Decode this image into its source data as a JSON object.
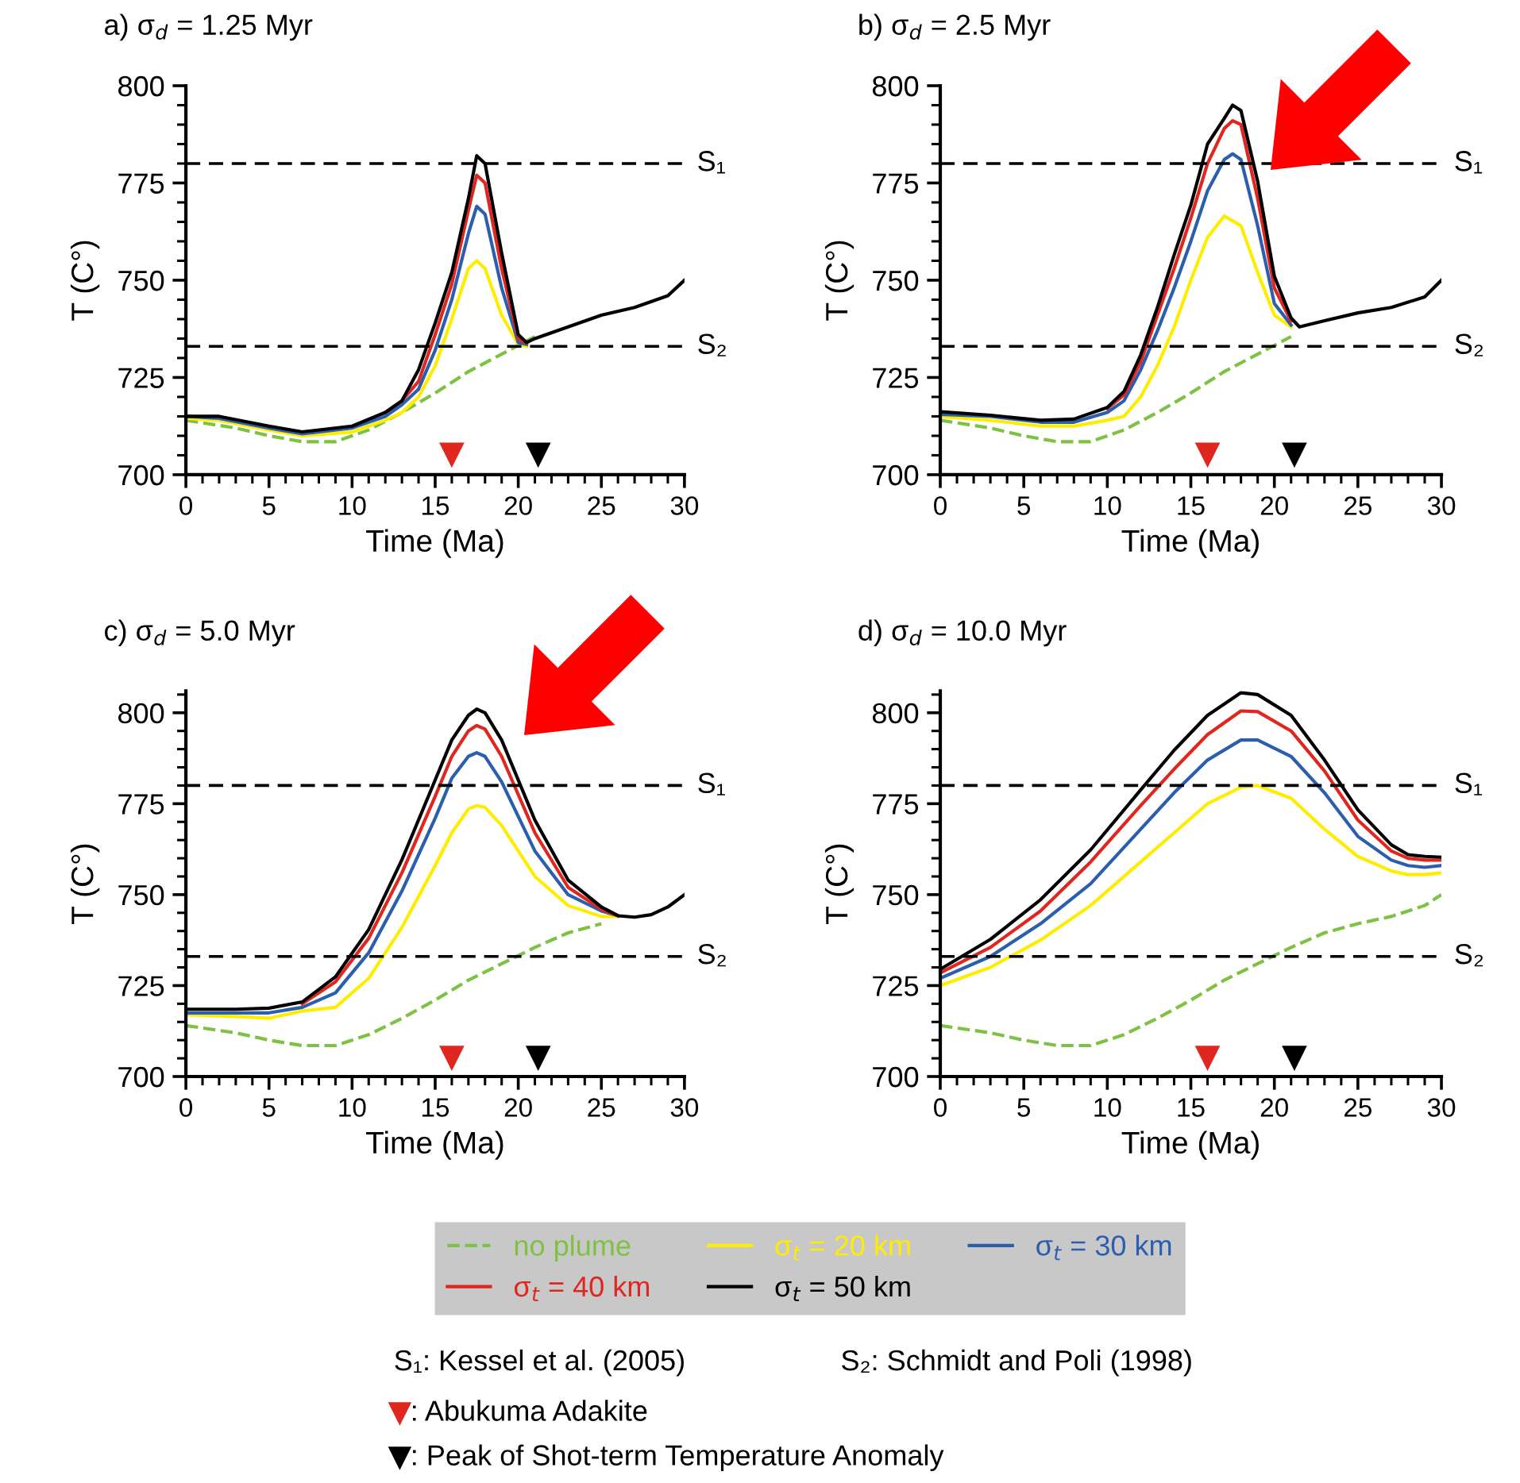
{
  "chart_data": [
    {
      "type": "line",
      "title": "a) σ$_{d}$ = 1.25 Myr",
      "xlabel": "Time (Ma)",
      "ylabel": "T (C°)",
      "xlim": [
        0,
        30
      ],
      "ylim": [
        700,
        800
      ],
      "xticks": [
        0,
        5,
        10,
        15,
        20,
        25,
        30
      ],
      "yticks": [
        700,
        725,
        750,
        775,
        800
      ],
      "ref_lines": [
        {
          "axis": "y",
          "value": 780,
          "label": "S₁",
          "color": "#000000",
          "line_style": "dashed"
        },
        {
          "axis": "y",
          "value": 733,
          "label": "S₂",
          "color": "#000000",
          "line_style": "dashed"
        }
      ],
      "series": [
        {
          "color": "#7dc242",
          "line_style": "dashed",
          "x": [
            0,
            3,
            5,
            7,
            9,
            11,
            13,
            15,
            17,
            19,
            21
          ],
          "values": [
            714,
            712,
            710,
            708.5,
            708.5,
            711.5,
            716,
            721,
            726.5,
            731,
            735.5
          ]
        },
        {
          "color": "#ffed00",
          "x": [
            0,
            2,
            5,
            7,
            10,
            12,
            13,
            14,
            15,
            16,
            17,
            17.5,
            18,
            19,
            20,
            20.5
          ],
          "values": [
            714.5,
            714,
            711.5,
            710,
            711,
            714,
            716,
            720,
            728,
            740,
            753,
            755,
            753,
            741,
            733.5,
            733
          ]
        },
        {
          "color": "#2b5fad",
          "x": [
            0,
            2,
            5,
            7,
            10,
            12,
            13,
            14,
            15,
            16,
            17,
            17.5,
            18,
            19,
            20,
            20.5
          ],
          "values": [
            715,
            714.5,
            712,
            710.5,
            712,
            715,
            718,
            722,
            732,
            745,
            762,
            769,
            767,
            748,
            734,
            733.5
          ]
        },
        {
          "color": "#e0271f",
          "x": [
            12,
            13,
            14,
            15,
            16,
            17,
            17.5,
            18,
            19,
            20,
            20.5
          ],
          "values": [
            716,
            719,
            724,
            736,
            749,
            768,
            777,
            775,
            753,
            735,
            733.8
          ]
        },
        {
          "color": "#000000",
          "x": [
            0,
            2,
            5,
            7,
            10,
            12,
            13,
            14,
            15,
            16,
            17,
            17.5,
            18,
            19,
            20,
            20.5,
            21,
            23,
            25,
            27,
            29,
            30
          ],
          "values": [
            715,
            715,
            712.5,
            711,
            712.5,
            716,
            719,
            727,
            739,
            752,
            771,
            782,
            780,
            757,
            736,
            734,
            735,
            738,
            741,
            743,
            746,
            750
          ]
        },
        {
          "type": "scatter",
          "color": "#e0271f",
          "marker": "triangle",
          "x": [
            16
          ],
          "values": [
            705
          ]
        },
        {
          "type": "scatter",
          "color": "#000000",
          "marker": "triangle",
          "x": [
            21.2
          ],
          "values": [
            705
          ]
        }
      ]
    },
    {
      "type": "line",
      "title": "b) σ$_{d}$ = 2.5 Myr",
      "xlabel": "Time (Ma)",
      "ylabel": "T (C°)",
      "xlim": [
        0,
        30
      ],
      "ylim": [
        700,
        800
      ],
      "xticks": [
        0,
        5,
        10,
        15,
        20,
        25,
        30
      ],
      "yticks": [
        700,
        725,
        750,
        775,
        800
      ],
      "ref_lines": [
        {
          "axis": "y",
          "value": 780,
          "label": "S₁",
          "color": "#000000",
          "line_style": "dashed"
        },
        {
          "axis": "y",
          "value": 733,
          "label": "S₂",
          "color": "#000000",
          "line_style": "dashed"
        }
      ],
      "series": [
        {
          "color": "#7dc242",
          "line_style": "dashed",
          "x": [
            0,
            3,
            5,
            7,
            9,
            11,
            13,
            15,
            17,
            19,
            21
          ],
          "values": [
            714,
            712,
            710,
            708.5,
            708.5,
            711.5,
            716,
            721,
            726.5,
            731,
            735.5
          ]
        },
        {
          "color": "#ffed00",
          "x": [
            0,
            3,
            6,
            8,
            10,
            11,
            12,
            13,
            14,
            15,
            16,
            17,
            18,
            19,
            20,
            21
          ],
          "values": [
            715,
            714,
            712.5,
            712.5,
            714,
            715,
            720,
            728,
            738,
            750,
            761,
            766.5,
            764,
            752,
            741,
            738
          ]
        },
        {
          "color": "#2b5fad",
          "x": [
            0,
            3,
            6,
            8,
            10,
            11,
            12,
            13,
            14,
            15,
            16,
            17,
            17.5,
            18,
            19,
            20,
            21
          ],
          "values": [
            715.5,
            715,
            713.5,
            713.5,
            716,
            719,
            727,
            737,
            748,
            760,
            773,
            781,
            782.5,
            781,
            764,
            744,
            738.5
          ]
        },
        {
          "color": "#e0271f",
          "x": [
            10,
            11,
            12,
            13,
            14,
            15,
            16,
            17,
            17.5,
            18,
            19,
            20,
            21
          ],
          "values": [
            717,
            720.5,
            729,
            741,
            753,
            766,
            780,
            789,
            791,
            790,
            771,
            748,
            739.5
          ]
        },
        {
          "color": "#000000",
          "x": [
            0,
            3,
            6,
            8,
            10,
            11,
            12,
            13,
            14,
            15,
            16,
            17,
            17.5,
            18,
            19,
            20,
            21,
            21.5,
            23,
            25,
            27,
            29,
            30
          ],
          "values": [
            716.2,
            715.3,
            714,
            714.3,
            717.3,
            721.4,
            730.8,
            743,
            756.5,
            769.3,
            785,
            791.6,
            795,
            793.6,
            775.4,
            751,
            740.3,
            738,
            739.6,
            741.6,
            743,
            745.7,
            750
          ]
        },
        {
          "type": "scatter",
          "color": "#e0271f",
          "marker": "triangle",
          "x": [
            16
          ],
          "values": [
            705
          ]
        },
        {
          "type": "scatter",
          "color": "#000000",
          "marker": "triangle",
          "x": [
            21.2
          ],
          "values": [
            705
          ]
        }
      ]
    },
    {
      "type": "line",
      "title": "c) σ$_{d}$ = 5.0 Myr",
      "xlabel": "Time (Ma)",
      "ylabel": "T (C°)",
      "xlim": [
        0,
        30
      ],
      "ylim": [
        700,
        806
      ],
      "xticks": [
        0,
        5,
        10,
        15,
        20,
        25,
        30
      ],
      "yticks": [
        700,
        725,
        750,
        775,
        800
      ],
      "ref_lines": [
        {
          "axis": "y",
          "value": 780,
          "label": "S₁",
          "color": "#000000",
          "line_style": "dashed"
        },
        {
          "axis": "y",
          "value": 733,
          "label": "S₂",
          "color": "#000000",
          "line_style": "dashed"
        }
      ],
      "series": [
        {
          "color": "#7dc242",
          "line_style": "dashed",
          "x": [
            0,
            3,
            5,
            7,
            9,
            11,
            13,
            15,
            17,
            19,
            21,
            23,
            25
          ],
          "values": [
            714,
            712,
            710,
            708.5,
            708.5,
            711.5,
            716,
            721,
            726.5,
            731,
            735.5,
            739.5,
            742
          ]
        },
        {
          "color": "#ffed00",
          "x": [
            0,
            3,
            5,
            7,
            9,
            11,
            13,
            15,
            16,
            17,
            17.5,
            18,
            19,
            21,
            23,
            25,
            26
          ],
          "values": [
            717,
            716.5,
            716,
            718,
            719,
            727,
            741,
            758,
            767,
            773.5,
            774.5,
            774,
            769,
            755,
            747,
            744,
            744
          ]
        },
        {
          "color": "#2b5fad",
          "x": [
            0,
            3,
            5,
            7,
            9,
            11,
            13,
            15,
            16,
            17,
            17.5,
            18,
            19,
            21,
            23,
            25,
            26
          ],
          "values": [
            717.5,
            717.5,
            717.5,
            719,
            723,
            734,
            751,
            771,
            782,
            788,
            789,
            788,
            781,
            762,
            750,
            745.5,
            744.2
          ]
        },
        {
          "color": "#e0271f",
          "x": [
            7,
            9,
            11,
            13,
            15,
            16,
            17,
            17.5,
            18,
            19,
            21,
            23,
            25,
            26
          ],
          "values": [
            720,
            726,
            738,
            756,
            777,
            788,
            795,
            796.5,
            795.5,
            788,
            767,
            752,
            746,
            744.2
          ]
        },
        {
          "color": "#000000",
          "x": [
            0,
            3,
            5,
            7,
            9,
            11,
            13,
            15,
            16,
            17,
            17.5,
            18,
            19,
            21,
            23,
            25,
            26,
            27,
            28,
            29,
            30
          ],
          "values": [
            718.5,
            718.5,
            718.8,
            720.5,
            727.4,
            740.4,
            759.6,
            781.5,
            792.5,
            799.3,
            801,
            800,
            792.5,
            770.5,
            754,
            746.6,
            744.2,
            743.8,
            744.5,
            746.6,
            750
          ]
        },
        {
          "type": "scatter",
          "color": "#e0271f",
          "marker": "triangle",
          "x": [
            16
          ],
          "values": [
            705
          ]
        },
        {
          "type": "scatter",
          "color": "#000000",
          "marker": "triangle",
          "x": [
            21.2
          ],
          "values": [
            705
          ]
        }
      ]
    },
    {
      "type": "line",
      "title": "d) σ$_{d}$ = 10.0 Myr",
      "xlabel": "Time (Ma)",
      "ylabel": "T (C°)",
      "xlim": [
        0,
        30
      ],
      "ylim": [
        700,
        806
      ],
      "xticks": [
        0,
        5,
        10,
        15,
        20,
        25,
        30
      ],
      "yticks": [
        700,
        725,
        750,
        775,
        800
      ],
      "legend": "bottom left",
      "annotations": [
        "S₁: Kessel et al. (2005)",
        "S₂: Schmidt and Poli (1998)",
        ": Abukuma Adakite",
        ": Peak of Shot-term Temperature Anomaly"
      ],
      "ref_lines": [
        {
          "axis": "y",
          "value": 780,
          "label": "S₁",
          "color": "#000000",
          "line_style": "dashed"
        },
        {
          "axis": "y",
          "value": 733,
          "label": "S₂",
          "color": "#000000",
          "line_style": "dashed"
        }
      ],
      "series": [
        {
          "name": "no plume",
          "color": "#7dc242",
          "line_style": "dashed",
          "x": [
            0,
            3,
            5,
            7,
            9,
            11,
            13,
            15,
            17,
            19,
            21,
            23,
            25,
            27,
            29,
            30
          ],
          "values": [
            714,
            712,
            710,
            708.5,
            708.5,
            711.5,
            716,
            721,
            726.5,
            731,
            735.5,
            739.5,
            742,
            744,
            747,
            750
          ]
        },
        {
          "name": "σ$_{t}$ = 20 km",
          "color": "#ffed00",
          "x": [
            0,
            3,
            6,
            9,
            12,
            14,
            16,
            18,
            19,
            21,
            23,
            25,
            27,
            28,
            29,
            30
          ],
          "values": [
            725,
            730,
            737.5,
            747,
            759,
            767,
            775,
            779.5,
            780,
            776.5,
            768,
            760.5,
            756.5,
            755.5,
            755.5,
            756
          ]
        },
        {
          "name": "σ$_{t}$ = 30 km",
          "color": "#2b5fad",
          "x": [
            0,
            3,
            6,
            9,
            12,
            14,
            16,
            18,
            19,
            21,
            23,
            25,
            27,
            28,
            29,
            30
          ],
          "values": [
            727,
            733,
            742,
            753,
            768,
            778,
            787,
            792.5,
            792.5,
            788,
            778,
            766,
            759.5,
            758,
            757.5,
            758
          ]
        },
        {
          "name": "σ$_{t}$ = 40 km",
          "color": "#e0271f",
          "x": [
            0,
            3,
            6,
            9,
            12,
            14,
            16,
            18,
            19,
            21,
            23,
            25,
            27,
            28,
            29,
            30
          ],
          "values": [
            728.5,
            735.5,
            745.5,
            759,
            774.5,
            784.5,
            794,
            800.5,
            800.3,
            795,
            784,
            770.5,
            762,
            760,
            759.5,
            759.5
          ]
        },
        {
          "name": "σ$_{t}$ = 50 km",
          "color": "#000000",
          "x": [
            0,
            3,
            6,
            9,
            12,
            14,
            16,
            18,
            19,
            21,
            23,
            25,
            27,
            28,
            29,
            30
          ],
          "values": [
            729.5,
            737.7,
            748.6,
            762.3,
            778.8,
            789.7,
            799.3,
            805.5,
            805,
            799.3,
            787,
            773.3,
            763.7,
            761,
            760.5,
            760.3
          ]
        },
        {
          "type": "scatter",
          "color": "#e0271f",
          "marker": "triangle",
          "x": [
            16
          ],
          "values": [
            705
          ]
        },
        {
          "type": "scatter",
          "color": "#000000",
          "marker": "triangle",
          "x": [
            21.2
          ],
          "values": [
            705
          ]
        }
      ]
    }
  ]
}
